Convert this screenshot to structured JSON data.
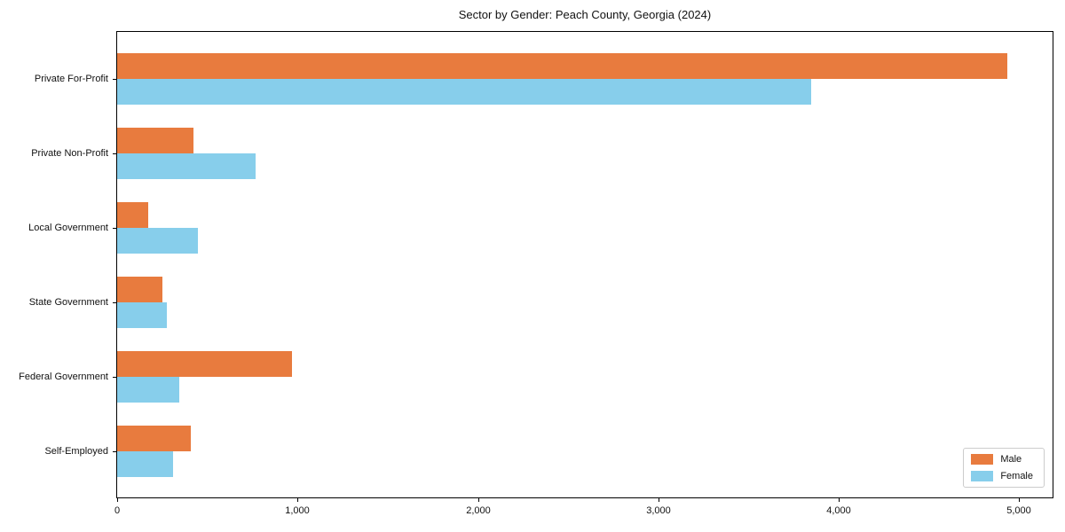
{
  "chart_data": {
    "type": "bar",
    "orientation": "horizontal",
    "title": "Sector by Gender: Peach County, Georgia (2024)",
    "categories": [
      "Private For-Profit",
      "Private Non-Profit",
      "Local Government",
      "State Government",
      "Federal Government",
      "Self-Employed"
    ],
    "series": [
      {
        "name": "Male",
        "color": "#e87b3e",
        "values": [
          4936,
          423,
          172,
          251,
          969,
          408
        ]
      },
      {
        "name": "Female",
        "color": "#87ceeb",
        "values": [
          3845,
          767,
          447,
          275,
          344,
          310
        ]
      }
    ],
    "xlabel": "",
    "ylabel": "",
    "xlim": [
      0,
      5185
    ],
    "xticks": [
      0,
      1000,
      2000,
      3000,
      4000,
      5000
    ],
    "xtick_labels": [
      "0",
      "1,000",
      "2,000",
      "3,000",
      "4,000",
      "5,000"
    ],
    "grid": false,
    "legend_position": "lower right",
    "frame": true
  }
}
